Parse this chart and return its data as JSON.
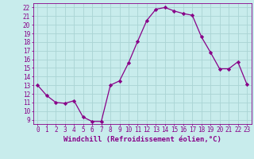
{
  "x": [
    0,
    1,
    2,
    3,
    4,
    5,
    6,
    7,
    8,
    9,
    10,
    11,
    12,
    13,
    14,
    15,
    16,
    17,
    18,
    19,
    20,
    21,
    22,
    23
  ],
  "y": [
    13,
    11.8,
    11.0,
    10.9,
    11.2,
    9.3,
    8.8,
    8.8,
    13.0,
    13.5,
    15.6,
    18.1,
    20.5,
    21.8,
    22.0,
    21.6,
    21.3,
    21.1,
    18.6,
    16.8,
    14.9,
    14.9,
    15.7,
    13.1
  ],
  "line_color": "#880088",
  "marker": "D",
  "marker_size": 2.2,
  "bg_color": "#c8ecec",
  "grid_color": "#aad4d4",
  "axis_color": "#880088",
  "xlabel": "Windchill (Refroidissement éolien,°C)",
  "xlim": [
    -0.5,
    23.5
  ],
  "ylim": [
    8.5,
    22.5
  ],
  "yticks": [
    9,
    10,
    11,
    12,
    13,
    14,
    15,
    16,
    17,
    18,
    19,
    20,
    21,
    22
  ],
  "xticks": [
    0,
    1,
    2,
    3,
    4,
    5,
    6,
    7,
    8,
    9,
    10,
    11,
    12,
    13,
    14,
    15,
    16,
    17,
    18,
    19,
    20,
    21,
    22,
    23
  ],
  "tick_fontsize": 5.5,
  "label_fontsize": 6.5,
  "linewidth": 0.9
}
